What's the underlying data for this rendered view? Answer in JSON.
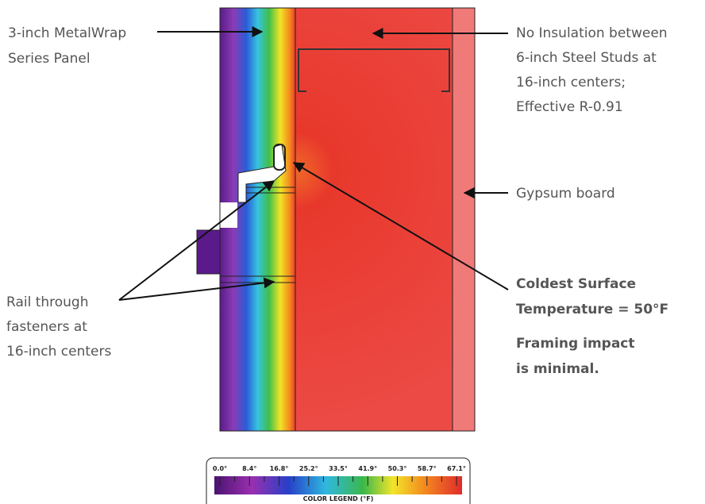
{
  "callouts": {
    "panel": [
      "3-inch MetalWrap",
      "Series Panel"
    ],
    "studs": [
      "No Insulation between",
      "6-inch Steel Studs at",
      "16-inch centers;",
      "Effective R-0.91"
    ],
    "gypsum": [
      "Gypsum board"
    ],
    "rail": [
      "Rail through",
      "fasteners at",
      "16-inch centers"
    ],
    "coldest": [
      "Coldest Surface",
      "Temperature = 50°F"
    ],
    "impact": [
      "Framing impact",
      "is minimal."
    ]
  },
  "legend": {
    "ticks": [
      "0.0°",
      "8.4°",
      "16.8°",
      "25.2°",
      "33.5°",
      "41.9°",
      "50.3°",
      "58.7°",
      "67.1°"
    ],
    "title": "COLOR LEGEND (°F)"
  }
}
